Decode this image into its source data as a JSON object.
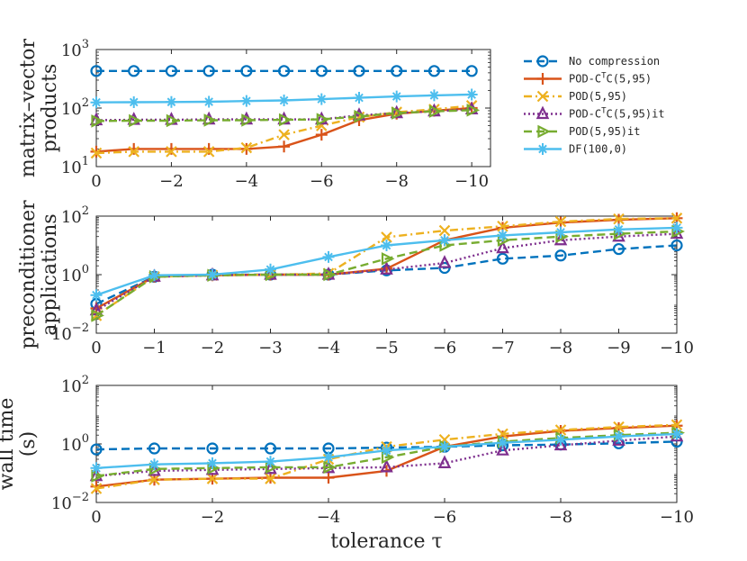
{
  "chart_data": [
    {
      "type": "line",
      "ylabel_lines": [
        "matrix–vector",
        "products"
      ],
      "xlabel": "",
      "yscale": "log",
      "ylim": [
        10,
        1000
      ],
      "yticks": [
        {
          "value": 10,
          "label": "10",
          "sup": "1"
        },
        {
          "value": 100,
          "label": "10",
          "sup": "2"
        },
        {
          "value": 1000,
          "label": "10",
          "sup": "3"
        }
      ],
      "xlim": [
        0,
        -10.5
      ],
      "xticks": [
        {
          "value": 0,
          "label": "0"
        },
        {
          "value": -2,
          "label": "−2"
        },
        {
          "value": -4,
          "label": "−4"
        },
        {
          "value": -6,
          "label": "−6"
        },
        {
          "value": -8,
          "label": "−8"
        },
        {
          "value": -10,
          "label": "−10"
        }
      ],
      "x": [
        0,
        -1,
        -2,
        -3,
        -4,
        -5,
        -6,
        -7,
        -8,
        -9,
        -10
      ],
      "series": [
        {
          "key": "nocomp",
          "values": [
            430,
            430,
            430,
            430,
            430,
            430,
            430,
            430,
            430,
            430,
            430
          ]
        },
        {
          "key": "podctc",
          "values": [
            18,
            20,
            20,
            20,
            20,
            22,
            35,
            62,
            80,
            90,
            100
          ]
        },
        {
          "key": "pod",
          "values": [
            17,
            18,
            18,
            18,
            21,
            35,
            50,
            70,
            85,
            95,
            110
          ]
        },
        {
          "key": "podctcit",
          "values": [
            62,
            63,
            63,
            64,
            64,
            64,
            64,
            75,
            82,
            88,
            95
          ]
        },
        {
          "key": "podit",
          "values": [
            60,
            61,
            61,
            62,
            62,
            63,
            64,
            72,
            82,
            88,
            92
          ]
        },
        {
          "key": "df",
          "values": [
            125,
            126,
            127,
            128,
            132,
            135,
            142,
            150,
            158,
            165,
            170
          ]
        }
      ]
    },
    {
      "type": "line",
      "ylabel_lines": [
        "preconditioner",
        "applications"
      ],
      "xlabel": "",
      "yscale": "log",
      "ylim": [
        0.01,
        100
      ],
      "yticks": [
        {
          "value": 0.01,
          "label": "10",
          "sup": "−2"
        },
        {
          "value": 1,
          "label": "10",
          "sup": "0"
        },
        {
          "value": 100,
          "label": "10",
          "sup": "2"
        }
      ],
      "xlim": [
        0,
        -10
      ],
      "xticks": [
        {
          "value": 0,
          "label": "0"
        },
        {
          "value": -1,
          "label": "−1"
        },
        {
          "value": -2,
          "label": "−2"
        },
        {
          "value": -3,
          "label": "−3"
        },
        {
          "value": -4,
          "label": "−4"
        },
        {
          "value": -5,
          "label": "−5"
        },
        {
          "value": -6,
          "label": "−6"
        },
        {
          "value": -7,
          "label": "−7"
        },
        {
          "value": -8,
          "label": "−8"
        },
        {
          "value": -9,
          "label": "−9"
        },
        {
          "value": -10,
          "label": "−10"
        }
      ],
      "x": [
        0,
        -1,
        -2,
        -3,
        -4,
        -5,
        -6,
        -7,
        -8,
        -9,
        -10
      ],
      "series": [
        {
          "key": "nocomp",
          "values": [
            0.1,
            0.85,
            1.0,
            1.0,
            1.0,
            1.4,
            1.7,
            3.5,
            4.5,
            7.5,
            10
          ]
        },
        {
          "key": "podctc",
          "values": [
            0.07,
            0.85,
            0.95,
            1.0,
            1.0,
            1.6,
            15,
            40,
            60,
            75,
            85
          ]
        },
        {
          "key": "pod",
          "values": [
            0.04,
            0.85,
            0.95,
            1.0,
            1.1,
            19,
            32,
            45,
            65,
            80,
            85
          ]
        },
        {
          "key": "podctcit",
          "values": [
            0.06,
            0.85,
            0.95,
            1.0,
            1.0,
            1.5,
            2.5,
            8,
            15,
            20,
            25
          ]
        },
        {
          "key": "podit",
          "values": [
            0.04,
            0.85,
            0.95,
            1.0,
            1.0,
            3.5,
            10,
            15,
            20,
            25,
            30
          ]
        },
        {
          "key": "df",
          "values": [
            0.2,
            0.95,
            1.0,
            1.5,
            4.0,
            10,
            15,
            22,
            28,
            35,
            40
          ]
        }
      ]
    },
    {
      "type": "line",
      "ylabel_lines": [
        "wall time",
        "(s)"
      ],
      "xlabel": "tolerance τ",
      "yscale": "log",
      "ylim": [
        0.01,
        100
      ],
      "yticks": [
        {
          "value": 0.01,
          "label": "10",
          "sup": "−2"
        },
        {
          "value": 1,
          "label": "10",
          "sup": "0"
        },
        {
          "value": 100,
          "label": "10",
          "sup": "2"
        }
      ],
      "xlim": [
        0,
        -10
      ],
      "xticks": [
        {
          "value": 0,
          "label": "0"
        },
        {
          "value": -2,
          "label": "−2"
        },
        {
          "value": -4,
          "label": "−4"
        },
        {
          "value": -6,
          "label": "−6"
        },
        {
          "value": -8,
          "label": "−8"
        },
        {
          "value": -10,
          "label": "−10"
        }
      ],
      "x": [
        0,
        -1,
        -2,
        -3,
        -4,
        -5,
        -6,
        -7,
        -8,
        -9,
        -10
      ],
      "series": [
        {
          "key": "nocomp",
          "values": [
            0.65,
            0.7,
            0.7,
            0.7,
            0.7,
            0.75,
            0.8,
            0.9,
            0.95,
            1.05,
            1.2
          ]
        },
        {
          "key": "podctc",
          "values": [
            0.035,
            0.06,
            0.065,
            0.07,
            0.07,
            0.12,
            0.8,
            1.8,
            2.8,
            3.5,
            4.2
          ]
        },
        {
          "key": "pod",
          "values": [
            0.03,
            0.06,
            0.065,
            0.065,
            0.3,
            0.8,
            1.4,
            2.2,
            3.0,
            3.8,
            4.5
          ]
        },
        {
          "key": "podctcit",
          "values": [
            0.08,
            0.12,
            0.13,
            0.14,
            0.15,
            0.16,
            0.22,
            0.6,
            0.9,
            1.3,
            1.8
          ]
        },
        {
          "key": "podit",
          "values": [
            0.08,
            0.14,
            0.15,
            0.16,
            0.16,
            0.35,
            0.8,
            1.2,
            1.6,
            2.0,
            2.4
          ]
        },
        {
          "key": "df",
          "values": [
            0.15,
            0.2,
            0.22,
            0.25,
            0.35,
            0.6,
            0.8,
            1.1,
            1.4,
            1.8,
            2.2
          ]
        }
      ]
    }
  ],
  "legend": [
    {
      "key": "nocomp",
      "label": "No compression",
      "color": "#0072BD",
      "marker": "circle",
      "dash": "dashed"
    },
    {
      "key": "podctc",
      "label": "POD-C",
      "sup": "T",
      "label_tail": "C(5,95)",
      "color": "#D95319",
      "marker": "plus",
      "dash": "solid"
    },
    {
      "key": "pod",
      "label": "POD(5,95)",
      "color": "#EDB120",
      "marker": "x",
      "dash": "dashdot"
    },
    {
      "key": "podctcit",
      "label": "POD-C",
      "sup": "T",
      "label_tail": "C(5,95)it",
      "color": "#7E2F8E",
      "marker": "triangle-up",
      "dash": "dotted"
    },
    {
      "key": "podit",
      "label": "POD(5,95)it",
      "color": "#77AC30",
      "marker": "triangle-right",
      "dash": "dashed"
    },
    {
      "key": "df",
      "label": "DF(100,0)",
      "color": "#4DBEEE",
      "marker": "asterisk",
      "dash": "solid"
    }
  ]
}
